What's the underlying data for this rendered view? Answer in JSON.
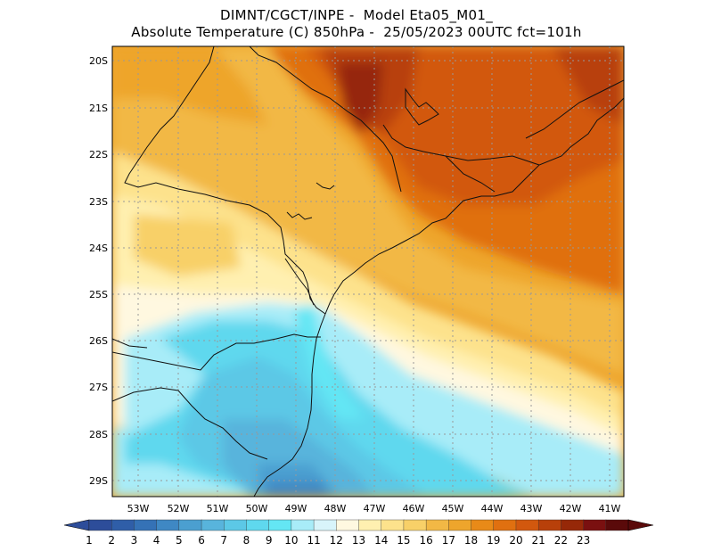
{
  "header": {
    "line1": "DIMNT/CGCT/INPE -  Model Eta05_M01_",
    "line2": "Absolute Temperature (C) 850hPa -  25/05/2023 00UTC fct=101h"
  },
  "map": {
    "lat_labels": [
      "20S",
      "21S",
      "22S",
      "23S",
      "24S",
      "25S",
      "26S",
      "27S",
      "28S",
      "29S"
    ],
    "lon_labels": [
      "53W",
      "52W",
      "51W",
      "50W",
      "49W",
      "48W",
      "47W",
      "46W",
      "45W",
      "44W",
      "43W",
      "42W",
      "41W"
    ]
  },
  "colorbar": {
    "labels": [
      "1",
      "2",
      "3",
      "4",
      "5",
      "6",
      "7",
      "8",
      "9",
      "10",
      "11",
      "12",
      "13",
      "14",
      "15",
      "16",
      "17",
      "18",
      "19",
      "20",
      "21",
      "22",
      "23"
    ],
    "colors": [
      "#2d4d9a",
      "#2f5ea8",
      "#3572b6",
      "#3f88c4",
      "#4b9fd0",
      "#58b4dc",
      "#5cc8e6",
      "#5fd8ee",
      "#64e6f4",
      "#a8ecf8",
      "#d8f4fa",
      "#fff8e0",
      "#fff0b0",
      "#fde28c",
      "#f8d068",
      "#f2b845",
      "#eea52c",
      "#e88a18",
      "#e07010",
      "#d2580e",
      "#b8400a",
      "#962808",
      "#7a1010",
      "#5a0a0a"
    ],
    "arrow_left_color": "#2d4d9a",
    "arrow_right_color": "#5a0a0a"
  }
}
